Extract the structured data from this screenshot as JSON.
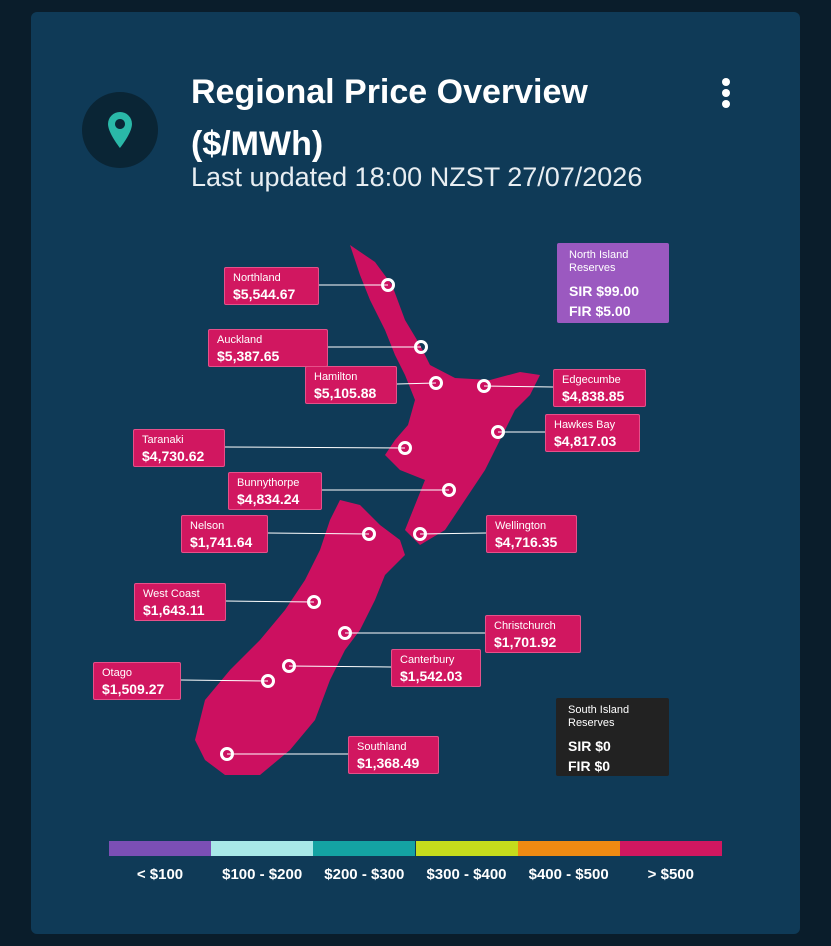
{
  "header": {
    "title": "Regional Price Overview ($/MWh)",
    "subtitle": "Last updated 18:00 NZST 27/07/2026"
  },
  "regions": [
    {
      "name": "Northland",
      "price": "$5,544.67"
    },
    {
      "name": "Auckland",
      "price": "$5,387.65"
    },
    {
      "name": "Hamilton",
      "price": "$5,105.88"
    },
    {
      "name": "Edgecumbe",
      "price": "$4,838.85"
    },
    {
      "name": "Hawkes Bay",
      "price": "$4,817.03"
    },
    {
      "name": "Taranaki",
      "price": "$4,730.62"
    },
    {
      "name": "Bunnythorpe",
      "price": "$4,834.24"
    },
    {
      "name": "Nelson",
      "price": "$1,741.64"
    },
    {
      "name": "Wellington",
      "price": "$4,716.35"
    },
    {
      "name": "West Coast",
      "price": "$1,643.11"
    },
    {
      "name": "Christchurch",
      "price": "$1,701.92"
    },
    {
      "name": "Canterbury",
      "price": "$1,542.03"
    },
    {
      "name": "Otago",
      "price": "$1,509.27"
    },
    {
      "name": "Southland",
      "price": "$1,368.49"
    }
  ],
  "reserves": [
    {
      "title": "North Island Reserves",
      "sir": "SIR $99.00",
      "fir": "FIR $5.00",
      "color": "#9b59c0"
    },
    {
      "title": "South Island Reserves",
      "sir": "SIR $0",
      "fir": "FIR $0",
      "color": "#222222"
    }
  ],
  "legend": [
    {
      "label": "< $100",
      "color": "#7b4fb5"
    },
    {
      "label": "$100 - $200",
      "color": "#a8e8e8"
    },
    {
      "label": "$200 - $300",
      "color": "#14a3a3"
    },
    {
      "label": "$300 - $400",
      "color": "#c5dc1c"
    },
    {
      "label": "$400 - $500",
      "color": "#ef8a12"
    },
    {
      "label": "> $500",
      "color": "#d11760"
    }
  ]
}
